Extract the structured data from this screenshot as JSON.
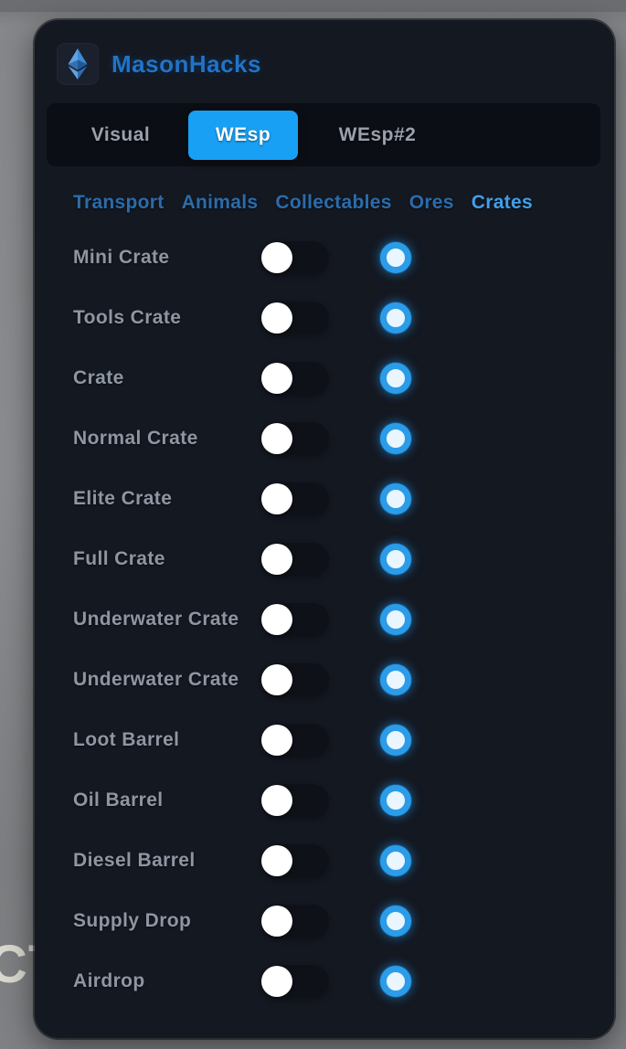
{
  "window": {
    "title": "MasonHacks",
    "logo_icon": "ethereum-diamond-icon"
  },
  "tabs": [
    {
      "label": "Visual",
      "active": false
    },
    {
      "label": "WEsp",
      "active": true
    },
    {
      "label": "WEsp#2",
      "active": false
    }
  ],
  "subtabs": [
    {
      "label": "Transport",
      "active": false
    },
    {
      "label": "Animals",
      "active": false
    },
    {
      "label": "Collectables",
      "active": false
    },
    {
      "label": "Ores",
      "active": false
    },
    {
      "label": "Crates",
      "active": true
    }
  ],
  "rows": [
    {
      "label": "Mini Crate",
      "toggle": "off"
    },
    {
      "label": "Tools Crate",
      "toggle": "off"
    },
    {
      "label": "Crate",
      "toggle": "off"
    },
    {
      "label": "Normal Crate",
      "toggle": "off"
    },
    {
      "label": "Elite Crate",
      "toggle": "off"
    },
    {
      "label": "Full Crate",
      "toggle": "off"
    },
    {
      "label": "Underwater Crate",
      "toggle": "off"
    },
    {
      "label": "Underwater Crate",
      "toggle": "off"
    },
    {
      "label": "Loot Barrel",
      "toggle": "off"
    },
    {
      "label": "Oil Barrel",
      "toggle": "off"
    },
    {
      "label": "Diesel Barrel",
      "toggle": "off"
    },
    {
      "label": "Supply Drop",
      "toggle": "off"
    },
    {
      "label": "Airdrop",
      "toggle": "off"
    }
  ],
  "background": {
    "partial_text": "CT"
  },
  "colors": {
    "accent_blue": "#18a0f4",
    "title_blue": "#2173c7",
    "subtab_inactive": "#2b6cab",
    "subtab_active": "#41a0e9",
    "row_label": "#8e96a2",
    "panel_bg": "#141821",
    "tab_bar_bg": "#0b0e14",
    "toggle_track": "#0e1117",
    "toggle_knob": "#ffffff",
    "swatch_ring": "#2b9ce8",
    "swatch_center": "#eaf6ff"
  }
}
